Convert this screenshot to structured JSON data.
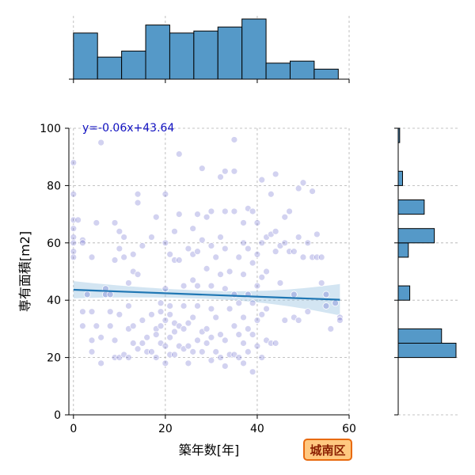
{
  "chart_data": {
    "type": "scatter",
    "xlabel": "築年数[年]",
    "ylabel": "専有面積[m2]",
    "xlim": [
      -1,
      60
    ],
    "ylim": [
      0,
      100
    ],
    "xticks": [
      0,
      20,
      40,
      60
    ],
    "yticks": [
      0,
      20,
      40,
      60,
      80,
      100
    ],
    "grid": true,
    "equation": "y=-0.06x+43.64",
    "badge": "城南区",
    "regression": {
      "slope": -0.06,
      "intercept": 43.64,
      "ci_half_width_ends": [
        3.0,
        5.5
      ],
      "ci_half_width_mid": 1.4,
      "x_range": [
        0,
        58
      ]
    },
    "colors": {
      "point": "#3333bb",
      "hist": "#5599c8",
      "line": "#1f77b4",
      "band": "#9ec5e3",
      "badge_fill": "#ffc880",
      "badge_border": "#e86a10"
    },
    "x_hist": {
      "bin_edges": [
        0,
        5.24,
        10.48,
        15.72,
        20.96,
        26.2,
        31.44,
        36.68,
        41.92,
        47.16,
        52.4,
        57.64
      ],
      "counts": [
        23,
        11,
        14,
        27,
        23,
        24,
        26,
        30,
        8,
        9,
        5
      ]
    },
    "y_hist": {
      "bin_edges": [
        15,
        20,
        25,
        30,
        35,
        40,
        45,
        50,
        55,
        60,
        65,
        70,
        75,
        80,
        85,
        90,
        95,
        100
      ],
      "counts": [
        0,
        40,
        30,
        0,
        0,
        8,
        0,
        0,
        7,
        25,
        0,
        18,
        0,
        3,
        0,
        0,
        1
      ]
    },
    "points": [
      [
        0,
        88
      ],
      [
        0,
        77
      ],
      [
        0,
        68
      ],
      [
        0,
        65
      ],
      [
        0,
        62
      ],
      [
        0,
        60
      ],
      [
        0,
        57
      ],
      [
        0,
        55
      ],
      [
        1,
        68
      ],
      [
        2,
        61
      ],
      [
        2,
        60
      ],
      [
        2,
        36
      ],
      [
        2,
        31
      ],
      [
        3,
        42
      ],
      [
        4,
        26
      ],
      [
        4,
        22
      ],
      [
        4,
        55
      ],
      [
        4,
        36
      ],
      [
        5,
        67
      ],
      [
        5,
        31
      ],
      [
        6,
        95
      ],
      [
        6,
        27
      ],
      [
        6,
        18
      ],
      [
        7,
        44
      ],
      [
        7,
        42
      ],
      [
        8,
        42
      ],
      [
        8,
        36
      ],
      [
        8,
        31
      ],
      [
        9,
        26
      ],
      [
        9,
        20
      ],
      [
        9,
        54
      ],
      [
        9,
        67
      ],
      [
        10,
        20
      ],
      [
        10,
        64
      ],
      [
        10,
        58
      ],
      [
        10,
        35
      ],
      [
        11,
        21
      ],
      [
        11,
        62
      ],
      [
        11,
        55
      ],
      [
        12,
        20
      ],
      [
        12,
        46
      ],
      [
        12,
        38
      ],
      [
        12,
        30
      ],
      [
        13,
        25
      ],
      [
        13,
        31
      ],
      [
        13,
        50
      ],
      [
        13,
        56
      ],
      [
        14,
        23
      ],
      [
        14,
        77
      ],
      [
        14,
        74
      ],
      [
        14,
        49
      ],
      [
        15,
        59
      ],
      [
        15,
        25
      ],
      [
        15,
        33
      ],
      [
        16,
        22
      ],
      [
        16,
        27
      ],
      [
        17,
        35
      ],
      [
        17,
        22
      ],
      [
        17,
        62
      ],
      [
        18,
        69
      ],
      [
        18,
        30
      ],
      [
        18,
        28
      ],
      [
        18,
        20
      ],
      [
        19,
        36
      ],
      [
        19,
        25
      ],
      [
        19,
        31
      ],
      [
        19,
        39
      ],
      [
        20,
        77
      ],
      [
        20,
        60
      ],
      [
        20,
        44
      ],
      [
        20,
        33
      ],
      [
        20,
        24
      ],
      [
        20,
        18
      ],
      [
        21,
        56
      ],
      [
        21,
        38
      ],
      [
        21,
        35
      ],
      [
        21,
        27
      ],
      [
        21,
        21
      ],
      [
        22,
        64
      ],
      [
        22,
        54
      ],
      [
        22,
        29
      ],
      [
        22,
        21
      ],
      [
        22,
        32
      ],
      [
        23,
        91
      ],
      [
        23,
        70
      ],
      [
        23,
        54
      ],
      [
        23,
        31
      ],
      [
        23,
        24
      ],
      [
        24,
        45
      ],
      [
        24,
        38
      ],
      [
        24,
        30
      ],
      [
        24,
        23
      ],
      [
        25,
        58
      ],
      [
        25,
        32
      ],
      [
        25,
        24
      ],
      [
        25,
        18
      ],
      [
        26,
        65
      ],
      [
        26,
        56
      ],
      [
        26,
        47
      ],
      [
        26,
        34
      ],
      [
        26,
        22
      ],
      [
        27,
        70
      ],
      [
        27,
        57
      ],
      [
        27,
        45
      ],
      [
        27,
        38
      ],
      [
        27,
        26
      ],
      [
        28,
        86
      ],
      [
        28,
        61
      ],
      [
        28,
        29
      ],
      [
        28,
        22
      ],
      [
        29,
        69
      ],
      [
        29,
        51
      ],
      [
        29,
        30
      ],
      [
        29,
        25
      ],
      [
        30,
        71
      ],
      [
        30,
        59
      ],
      [
        30,
        45
      ],
      [
        30,
        37
      ],
      [
        30,
        27
      ],
      [
        30,
        19
      ],
      [
        31,
        55
      ],
      [
        31,
        34
      ],
      [
        31,
        22
      ],
      [
        32,
        83
      ],
      [
        32,
        62
      ],
      [
        32,
        49
      ],
      [
        32,
        28
      ],
      [
        32,
        20
      ],
      [
        33,
        85
      ],
      [
        33,
        71
      ],
      [
        33,
        58
      ],
      [
        33,
        44
      ],
      [
        33,
        26
      ],
      [
        33,
        17
      ],
      [
        34,
        50
      ],
      [
        34,
        37
      ],
      [
        34,
        21
      ],
      [
        35,
        96
      ],
      [
        35,
        85
      ],
      [
        35,
        71
      ],
      [
        35,
        42
      ],
      [
        35,
        31
      ],
      [
        35,
        21
      ],
      [
        36,
        55
      ],
      [
        36,
        39
      ],
      [
        36,
        28
      ],
      [
        36,
        20
      ],
      [
        37,
        67
      ],
      [
        37,
        60
      ],
      [
        37,
        49
      ],
      [
        37,
        34
      ],
      [
        37,
        25
      ],
      [
        37,
        18
      ],
      [
        38,
        72
      ],
      [
        38,
        58
      ],
      [
        38,
        42
      ],
      [
        38,
        30
      ],
      [
        38,
        22
      ],
      [
        39,
        71
      ],
      [
        39,
        53
      ],
      [
        39,
        39
      ],
      [
        39,
        28
      ],
      [
        39,
        15
      ],
      [
        40,
        67
      ],
      [
        40,
        56
      ],
      [
        40,
        45
      ],
      [
        40,
        33
      ],
      [
        40,
        24
      ],
      [
        41,
        82
      ],
      [
        41,
        60
      ],
      [
        41,
        48
      ],
      [
        41,
        35
      ],
      [
        41,
        20
      ],
      [
        42,
        62
      ],
      [
        42,
        50
      ],
      [
        42,
        37
      ],
      [
        42,
        26
      ],
      [
        43,
        77
      ],
      [
        43,
        63
      ],
      [
        43,
        25
      ],
      [
        44,
        84
      ],
      [
        44,
        64
      ],
      [
        44,
        57
      ],
      [
        44,
        25
      ],
      [
        45,
        59
      ],
      [
        45,
        46
      ],
      [
        46,
        69
      ],
      [
        46,
        60
      ],
      [
        46,
        33
      ],
      [
        47,
        71
      ],
      [
        47,
        57
      ],
      [
        48,
        57
      ],
      [
        48,
        42
      ],
      [
        48,
        34
      ],
      [
        49,
        79
      ],
      [
        49,
        62
      ],
      [
        49,
        33
      ],
      [
        50,
        81
      ],
      [
        50,
        55
      ],
      [
        51,
        60
      ],
      [
        51,
        36
      ],
      [
        52,
        78
      ],
      [
        52,
        55
      ],
      [
        53,
        63
      ],
      [
        53,
        55
      ],
      [
        54,
        55
      ],
      [
        54,
        46
      ],
      [
        55,
        42
      ],
      [
        55,
        38
      ],
      [
        56,
        30
      ],
      [
        57,
        39
      ],
      [
        58,
        34
      ],
      [
        58,
        33
      ]
    ]
  }
}
